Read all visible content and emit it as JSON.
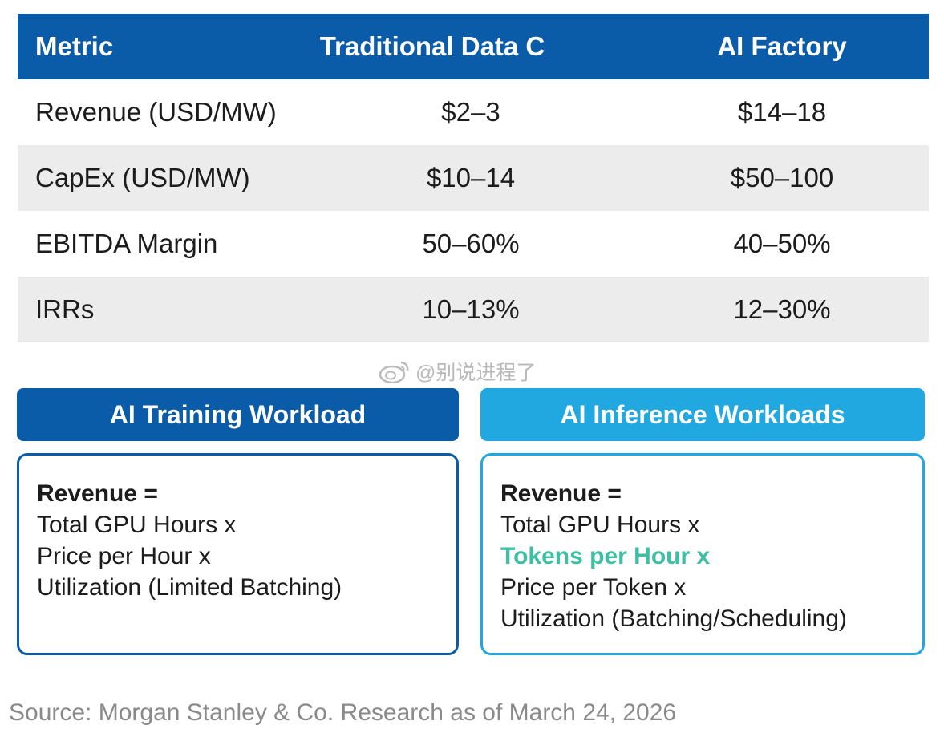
{
  "table": {
    "headers": [
      "Metric",
      "Traditional Data C",
      "AI Factory"
    ],
    "rows": [
      [
        "Revenue (USD/MW)",
        "$2–3",
        "$14–18"
      ],
      [
        "CapEx (USD/MW)",
        "$10–14",
        "$50–100"
      ],
      [
        "EBITDA Margin",
        "50–60%",
        "40–50%"
      ],
      [
        "IRRs",
        "10–13%",
        "12–30%"
      ]
    ]
  },
  "watermark": {
    "text": "@别说进程了",
    "icon": "weibo-logo-icon"
  },
  "panels": [
    {
      "title": "AI Training Workload",
      "lines": [
        "Revenue =",
        "Total GPU Hours x",
        "Price per Hour x",
        "Utilization (Limited Batching)"
      ]
    },
    {
      "title": "AI Inference Workloads",
      "lines": [
        "Revenue =",
        "Total GPU Hours x",
        "Tokens per Hour x",
        "Price per Token x",
        "Utilization (Batching/Scheduling)"
      ]
    }
  ],
  "source": "Source: Morgan Stanley & Co. Research as of March 24, 2026",
  "colors": {
    "header_blue": "#0a5ca8",
    "inference_blue": "#22a8e0",
    "highlight_teal": "#3dbfa3",
    "row_shade": "#ececec"
  }
}
